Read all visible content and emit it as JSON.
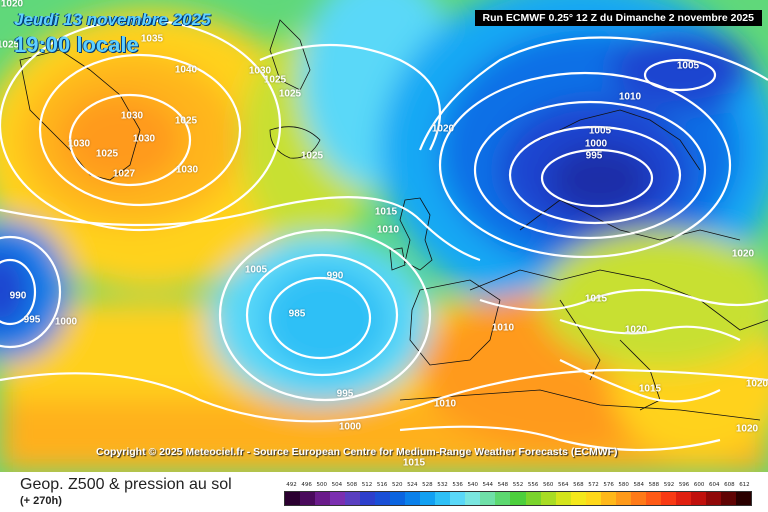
{
  "header": {
    "date_line1": "Jeudi 13 novembre 2025",
    "date_line2": "19:00 locale",
    "run_label": "Run ECMWF 0.25° 12 Z du Dimanche 2 novembre 2025"
  },
  "copyright": "Copyright © 2025 Meteociel.fr - Source European Centre for Medium-Range Weather Forecasts (ECMWF)",
  "footer": {
    "title": "Geop. Z500 & pression au sol",
    "lead_time": "(+ 270h)"
  },
  "color_scale": {
    "ticks": [
      "492",
      "496",
      "500",
      "504",
      "508",
      "512",
      "516",
      "520",
      "524",
      "528",
      "532",
      "536",
      "540",
      "544",
      "548",
      "552",
      "556",
      "560",
      "564",
      "568",
      "572",
      "576",
      "580",
      "584",
      "588",
      "592",
      "596",
      "600",
      "604",
      "608",
      "612"
    ],
    "colors": [
      "#2b0030",
      "#4a0a5c",
      "#6a1b8a",
      "#7b2fb0",
      "#5a3fc0",
      "#2d3fcc",
      "#1a4fd6",
      "#0a64e0",
      "#0a80ea",
      "#12a0f2",
      "#2ec0f6",
      "#5ad8f8",
      "#7ae6e0",
      "#6fe0a8",
      "#5cd870",
      "#4ccf3c",
      "#7ad42c",
      "#a8dc24",
      "#d4e41c",
      "#f4e81c",
      "#ffd81a",
      "#ffb81a",
      "#ff9a1a",
      "#ff7a18",
      "#ff5a16",
      "#f83a14",
      "#e02010",
      "#c0100c",
      "#900808",
      "#600404",
      "#2a0000"
    ]
  },
  "isobar_labels": [
    "1020",
    "1025",
    "1035",
    "1040",
    "1030",
    "1025",
    "1025",
    "1030",
    "1025",
    "1030",
    "1030",
    "1025",
    "1027",
    "1030",
    "1025",
    "1020",
    "1005",
    "1010",
    "1005",
    "1000",
    "995",
    "1015",
    "1010",
    "1005",
    "990",
    "985",
    "995",
    "1000",
    "990",
    "995",
    "1000",
    "1020",
    "1015",
    "1010",
    "1020",
    "1015",
    "1010",
    "1015",
    "1020",
    "1020"
  ]
}
